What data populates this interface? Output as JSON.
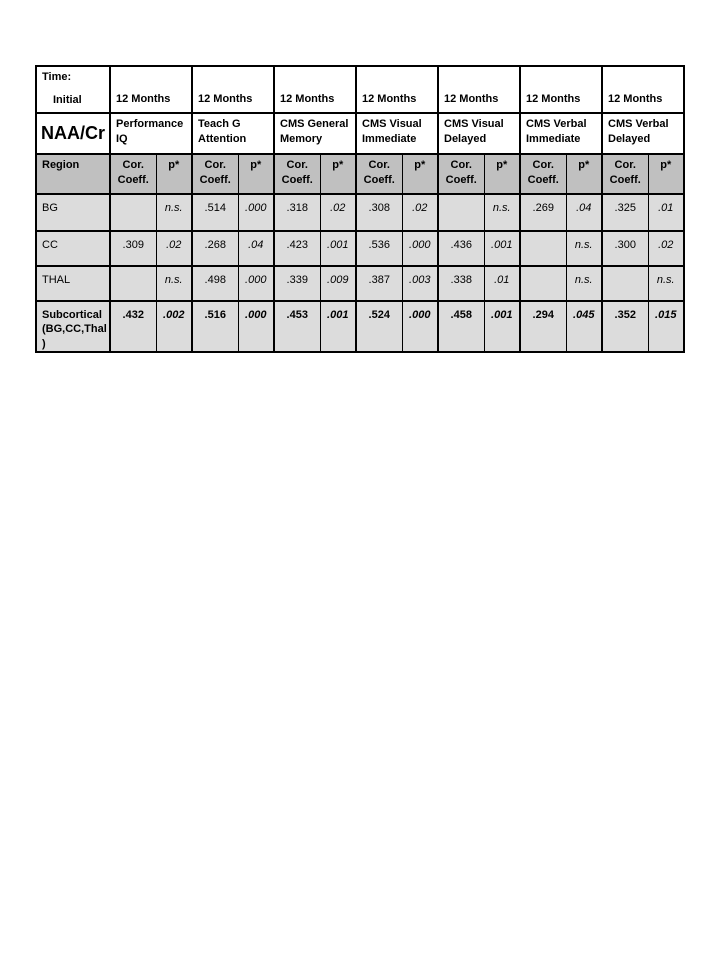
{
  "colors": {
    "border": "#000000",
    "header_fill": "#c0c0c0",
    "row_fill": "#dcdcdc",
    "page_background": "#ffffff"
  },
  "table": {
    "time_label": "Time:",
    "time_initial": "Initial",
    "months_label": "12 Months",
    "ratio_label": "NAA/Cr",
    "groups": [
      "Performance IQ",
      "Teach G Attention",
      "CMS General Memory",
      "CMS Visual Immediate",
      "CMS Visual Delayed",
      "CMS Verbal Immediate",
      "CMS Verbal Delayed"
    ],
    "region_header": "Region",
    "cor_header": "Cor. Coeff.",
    "p_header": "p*",
    "rows": [
      {
        "region_lines": [
          "BG"
        ],
        "bold": false,
        "cells": [
          "",
          "n.s.",
          ".514",
          ".000",
          ".318",
          ".02",
          ".308",
          ".02",
          "",
          "n.s.",
          ".269",
          ".04",
          ".325",
          ".01"
        ]
      },
      {
        "region_lines": [
          "CC"
        ],
        "bold": false,
        "cells": [
          ".309",
          ".02",
          ".268",
          ".04",
          ".423",
          ".001",
          ".536",
          ".000",
          ".436",
          ".001",
          "",
          "n.s.",
          ".300",
          ".02"
        ]
      },
      {
        "region_lines": [
          "THAL"
        ],
        "bold": false,
        "cells": [
          "",
          "n.s.",
          ".498",
          ".000",
          ".339",
          ".009",
          ".387",
          ".003",
          ".338",
          ".01",
          "",
          "n.s.",
          "",
          "n.s."
        ]
      },
      {
        "region_lines": [
          "Subcortical",
          "(BG,CC,Thal)"
        ],
        "bold": true,
        "cells": [
          ".432",
          ".002",
          ".516",
          ".000",
          ".453",
          ".001",
          ".524",
          ".000",
          ".458",
          ".001",
          ".294",
          ".045",
          ".352",
          ".015"
        ]
      }
    ]
  }
}
